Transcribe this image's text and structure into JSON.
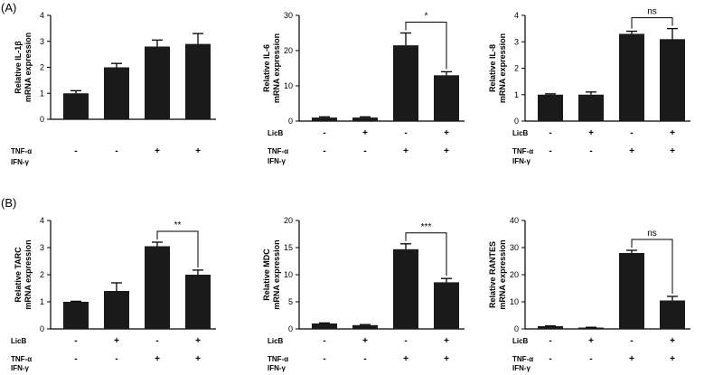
{
  "panel_labels": [
    "(A)",
    "(B)"
  ],
  "chart_data": [
    {
      "panel": "(A)",
      "type": "bar",
      "ylabel_lines": [
        "Relative IL-1β",
        "mRNA expression"
      ],
      "ylim": [
        0,
        4
      ],
      "yticks": [
        "0",
        "1",
        "2",
        "3",
        "4"
      ],
      "values": [
        1.0,
        2.0,
        2.8,
        2.9
      ],
      "errors": [
        0.1,
        0.15,
        0.25,
        0.4
      ],
      "conditions": [
        {
          "label": "TNF-α",
          "signs": [
            "-",
            "-",
            "+",
            "+"
          ]
        },
        {
          "label": "IFN-γ",
          "signs": [
            "",
            "",
            "",
            ""
          ]
        }
      ],
      "significance": null
    },
    {
      "panel": "(A)",
      "type": "bar",
      "ylabel_lines": [
        "Relative IL-6",
        "mRNA expression"
      ],
      "ylim": [
        0,
        30
      ],
      "yticks": [
        "0",
        "10",
        "20",
        "30"
      ],
      "values": [
        1.0,
        1.0,
        21.5,
        13.0
      ],
      "errors": [
        0.2,
        0.2,
        3.5,
        1.0
      ],
      "conditions": [
        {
          "label": "LicB",
          "signs": [
            "-",
            "+",
            "-",
            "+"
          ]
        },
        {
          "label": "TNF-α",
          "signs": [
            "-",
            "-",
            "+",
            "+"
          ]
        },
        {
          "label": "IFN-γ",
          "signs": [
            "",
            "",
            "",
            ""
          ]
        }
      ],
      "significance": {
        "text": "*",
        "from": 2,
        "to": 3
      }
    },
    {
      "panel": "(A)",
      "type": "bar",
      "ylabel_lines": [
        "Relative IL-8",
        "mRNA expression"
      ],
      "ylim": [
        0,
        4
      ],
      "yticks": [
        "0",
        "1",
        "2",
        "3",
        "4"
      ],
      "values": [
        1.0,
        1.0,
        3.3,
        3.1
      ],
      "errors": [
        0.03,
        0.1,
        0.1,
        0.4
      ],
      "conditions": [
        {
          "label": "LicB",
          "signs": [
            "-",
            "+",
            "-",
            "+"
          ]
        },
        {
          "label": "TNF-α",
          "signs": [
            "-",
            "-",
            "+",
            "+"
          ]
        },
        {
          "label": "IFN-γ",
          "signs": [
            "",
            "",
            "",
            ""
          ]
        }
      ],
      "significance": {
        "text": "ns",
        "from": 2,
        "to": 3
      }
    },
    {
      "panel": "(B)",
      "type": "bar",
      "ylabel_lines": [
        "Relative TARC",
        "mRNA expression"
      ],
      "ylim": [
        0,
        4
      ],
      "yticks": [
        "0",
        "1",
        "2",
        "3",
        "4"
      ],
      "values": [
        1.0,
        1.4,
        3.05,
        2.0
      ],
      "errors": [
        0.02,
        0.3,
        0.15,
        0.17
      ],
      "conditions": [
        {
          "label": "LicB",
          "signs": [
            "-",
            "+",
            "-",
            "+"
          ]
        },
        {
          "label": "TNF-α",
          "signs": [
            "-",
            "-",
            "+",
            "+"
          ]
        },
        {
          "label": "IFN-γ",
          "signs": [
            "",
            "",
            "",
            ""
          ]
        }
      ],
      "significance": {
        "text": "**",
        "from": 2,
        "to": 3
      }
    },
    {
      "panel": "(B)",
      "type": "bar",
      "ylabel_lines": [
        "Relative MDC",
        "mRNA expression"
      ],
      "ylim": [
        0,
        20
      ],
      "yticks": [
        "0",
        "5",
        "10",
        "15",
        "20"
      ],
      "values": [
        1.0,
        0.7,
        14.7,
        8.6
      ],
      "errors": [
        0.1,
        0.1,
        1.0,
        0.7
      ],
      "conditions": [
        {
          "label": "LicB",
          "signs": [
            "-",
            "+",
            "-",
            "+"
          ]
        },
        {
          "label": "TNF-α",
          "signs": [
            "-",
            "-",
            "+",
            "+"
          ]
        },
        {
          "label": "IFN-γ",
          "signs": [
            "",
            "",
            "",
            ""
          ]
        }
      ],
      "significance": {
        "text": "***",
        "from": 2,
        "to": 3
      }
    },
    {
      "panel": "(B)",
      "type": "bar",
      "ylabel_lines": [
        "Relative RANTES",
        "mRNA expression"
      ],
      "ylim": [
        0,
        40
      ],
      "yticks": [
        "0",
        "10",
        "20",
        "30",
        "40"
      ],
      "values": [
        1.0,
        0.5,
        28.0,
        10.5
      ],
      "errors": [
        0.1,
        0.1,
        1.0,
        1.5
      ],
      "conditions": [
        {
          "label": "LicB",
          "signs": [
            "-",
            "+",
            "-",
            "+"
          ]
        },
        {
          "label": "TNF-α",
          "signs": [
            "-",
            "-",
            "+",
            "+"
          ]
        },
        {
          "label": "IFN-γ",
          "signs": [
            "",
            "",
            "",
            ""
          ]
        }
      ],
      "significance": {
        "text": "ns",
        "from": 2,
        "to": 3
      }
    }
  ]
}
